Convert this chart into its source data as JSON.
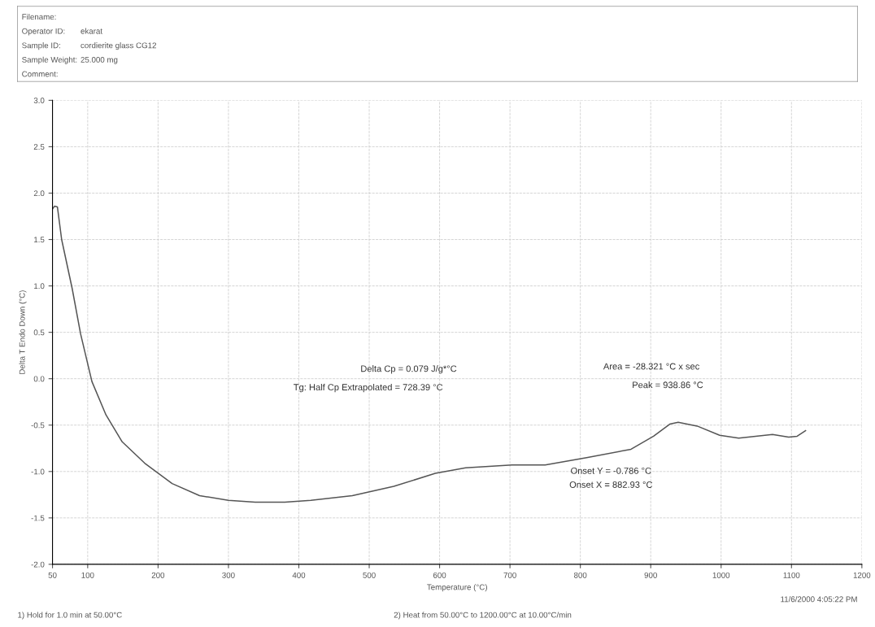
{
  "chart_data": {
    "type": "line",
    "xlabel": "Temperature (°C)",
    "ylabel": "Delta T Endo Down (°C)",
    "x": [
      50,
      53,
      57,
      63,
      78,
      90,
      106,
      126,
      149,
      181,
      220,
      259,
      300,
      338,
      380,
      417,
      476,
      535,
      594,
      637,
      703,
      750,
      809,
      872,
      904,
      927,
      939,
      966,
      998,
      1025,
      1073,
      1096,
      1108,
      1120
    ],
    "series": [
      {
        "color": "#555555",
        "values": [
          1.83,
          1.86,
          1.85,
          1.5,
          0.97,
          0.48,
          -0.03,
          -0.39,
          -0.68,
          -0.91,
          -1.13,
          -1.26,
          -1.31,
          -1.33,
          -1.33,
          -1.31,
          -1.26,
          -1.16,
          -1.02,
          -0.96,
          -0.93,
          -0.93,
          -0.85,
          -0.76,
          -0.62,
          -0.49,
          -0.47,
          -0.51,
          -0.61,
          -0.64,
          -0.6,
          -0.63,
          -0.62,
          -0.56
        ]
      }
    ],
    "xlim": [
      50,
      1200
    ],
    "xticks": [
      50,
      100,
      200,
      300,
      400,
      500,
      600,
      700,
      800,
      900,
      1000,
      1100,
      1200
    ],
    "ylim": [
      -2.0,
      3.0
    ],
    "yticks": [
      {
        "value": -2,
        "label": "-2.0"
      },
      -1.5,
      {
        "value": -1,
        "label": "-1.0"
      },
      -0.5,
      {
        "value": 0,
        "label": "0.0"
      },
      0.5,
      {
        "value": 1,
        "label": "1.0"
      },
      1.5,
      {
        "value": 2,
        "label": "2.0"
      },
      2.5,
      {
        "value": 3,
        "label": "3.0"
      }
    ],
    "grid": true,
    "line_style": "solid",
    "marker": "none",
    "annotations": [
      "Delta Cp = 0.079 J/g*°C",
      "Tg: Half Cp Extrapolated = 728.39 °C",
      "Area = -28.321 °C x sec",
      "Peak = 938.86 °C",
      "Onset Y = -0.786 °C",
      "Onset X = 882.93 °C",
      "Filename:",
      "Operator ID:",
      "Sample ID:",
      "Sample Weight:",
      "Comment:",
      "ekarat",
      "cordierite glass CG12",
      "25.000 mg",
      "1) Hold for 1.0 min at 50.00°C",
      "2) Heat from 50.00°C to 1200.00°C at 10.00°C/min",
      "11/6/2000 4:05:22 PM"
    ]
  }
}
